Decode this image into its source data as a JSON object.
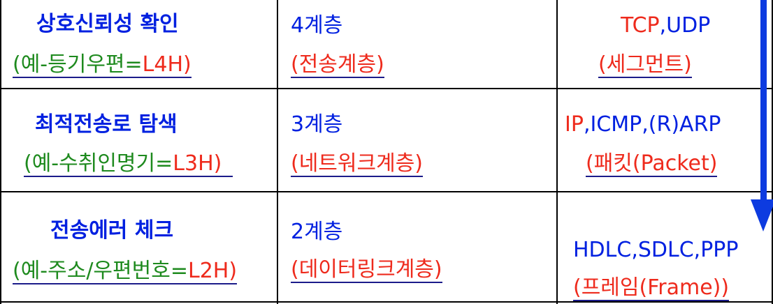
{
  "rows": [
    {
      "function": "상호신뢰성 확인",
      "example_prefix": "(예-등기우편=",
      "example_code": "L4H)",
      "layer": "4계층",
      "layer_name": "(전송계층)",
      "protocols": "TCP,UDP",
      "unit": "(세그먼트)"
    },
    {
      "function": "최적전송로 탐색",
      "example_prefix": "(예-수취인명기=",
      "example_code": "L3H)",
      "layer": "3계층",
      "layer_name": "(네트워크계층)",
      "protocols": "IP,ICMP,(R)ARP",
      "unit": "(패킷(Packet)"
    },
    {
      "function": "전송에러 체크",
      "example_prefix": "(예-주소/우편번호=",
      "example_code": "L2H)",
      "layer": "2계층",
      "layer_name": "(데이터링크계층)",
      "protocols": "HDLC,SDLC,PPP",
      "unit": "(프레임(Frame))"
    }
  ],
  "colors": {
    "blue": "#0020e0",
    "red": "#ee2a1c",
    "green": "#1e8a1e",
    "arrow": "#0d3be0"
  }
}
